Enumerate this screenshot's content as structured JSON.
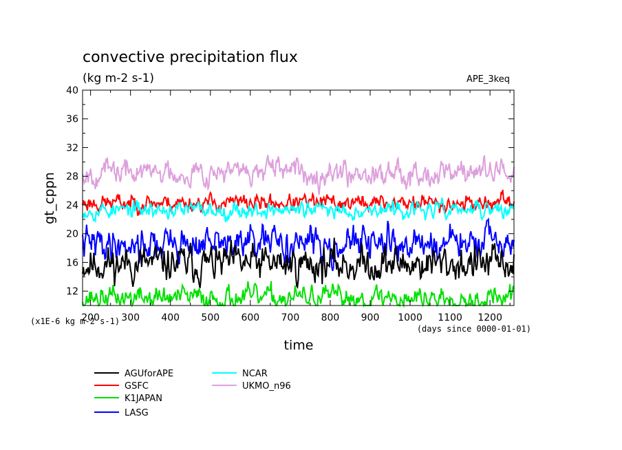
{
  "chart_data": {
    "type": "line",
    "title": "convective precipitation flux",
    "units": "(kg m-2 s-1)",
    "experiment": "APE_3keq",
    "ylabel": "gt_cppn",
    "xlabel": "time",
    "yscale_note": "(x1E-6 kg m-2 s-1)",
    "xunits_note": "(days since 0000-01-01)",
    "xlim": [
      180,
      1260
    ],
    "ylim": [
      10,
      40
    ],
    "xticks": [
      200,
      300,
      400,
      500,
      600,
      700,
      800,
      900,
      1000,
      1100,
      1200
    ],
    "yticks": [
      12,
      16,
      20,
      24,
      28,
      32,
      36,
      40
    ],
    "x_start": 180,
    "x_end": 1260,
    "x_step": 2,
    "series": [
      {
        "name": "AGUforAPE",
        "color": "#000000",
        "mean": 15.8,
        "amplitude": 1.2,
        "seed": 11
      },
      {
        "name": "GSFC",
        "color": "#ff0000",
        "mean": 24.3,
        "amplitude": 0.55,
        "seed": 23
      },
      {
        "name": "K1JAPAN",
        "color": "#00e000",
        "mean": 11.1,
        "amplitude": 0.75,
        "seed": 37
      },
      {
        "name": "LASG",
        "color": "#0000ff",
        "mean": 18.6,
        "amplitude": 1.1,
        "seed": 41
      },
      {
        "name": "NCAR",
        "color": "#00ffff",
        "mean": 23.3,
        "amplitude": 0.55,
        "seed": 53
      },
      {
        "name": "UKMO_n96",
        "color": "#dda0dd",
        "mean": 28.6,
        "amplitude": 0.8,
        "seed": 67
      }
    ],
    "legend_position": "bottom-left"
  }
}
